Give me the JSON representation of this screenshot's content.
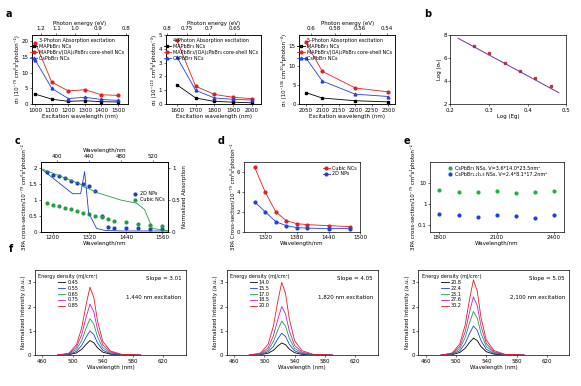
{
  "chart_data": [
    {
      "type": "line",
      "panel_label": "a",
      "title": "3-Photon Absorption excitation",
      "x_label": "Excitation wavelength (nm)",
      "y_label": "σ₃ (10⁻⁷⁹ cm⁶s²photon⁻²)",
      "x2_label": "Photon energy (eV)",
      "x": [
        1000,
        1100,
        1200,
        1300,
        1400,
        1500
      ],
      "xlim": [
        980,
        1560
      ],
      "xticks": [
        1000,
        1100,
        1200,
        1300,
        1400,
        1500
      ],
      "x2lim": [
        980,
        1560
      ],
      "x2ticks": [
        {
          "value": 1033,
          "label": "1.2"
        },
        {
          "value": 1127,
          "label": "1.1"
        },
        {
          "value": 1240,
          "label": "1.0"
        },
        {
          "value": 1378,
          "label": "0.9"
        },
        {
          "value": 1550,
          "label": "0.8"
        }
      ],
      "ylim": [
        0,
        22
      ],
      "yticks": [
        0,
        5,
        10,
        15,
        20
      ],
      "legend": "upper right",
      "series": [
        {
          "name": "MAPbBr₃ NCs",
          "color": "#000000",
          "marker": "square",
          "line_style": "solid",
          "values": [
            3.2,
            1.6,
            0.9,
            1.1,
            0.8,
            0.7
          ]
        },
        {
          "name": "MAPbBr₃/(OA)₂PbBr₄ core-shell NCs",
          "color": "#e02020",
          "marker": "circle",
          "line_style": "solid",
          "values": [
            19.5,
            7.0,
            4.2,
            4.6,
            3.0,
            2.8
          ]
        },
        {
          "name": "CsPbBr₃ NCs",
          "color": "#2040e0",
          "marker": "triangle",
          "line_style": "solid",
          "values": [
            14.0,
            5.0,
            1.8,
            2.2,
            1.5,
            1.2
          ]
        }
      ]
    },
    {
      "type": "line",
      "title": "4-Photon Absorption excitation",
      "x_label": "Excitation wavelength (nm)",
      "y_label": "σ₄ (10⁻¹¹⁰ cm⁸s³photon⁻³)",
      "x2_label": "Photon energy (eV)",
      "x": [
        1600,
        1700,
        1800,
        1900,
        2000
      ],
      "xlim": [
        1540,
        2050
      ],
      "xticks": [
        1600,
        1700,
        1800,
        1900,
        2000
      ],
      "x2lim": [
        1540,
        2050
      ],
      "x2ticks": [
        {
          "value": 1550,
          "label": "0.8"
        },
        {
          "value": 1653,
          "label": "0.75"
        },
        {
          "value": 1771,
          "label": "0.7"
        },
        {
          "value": 1908,
          "label": "0.65"
        }
      ],
      "ylim": [
        0,
        5
      ],
      "yticks": [
        0,
        1,
        2,
        3,
        4,
        5
      ],
      "legend": "upper right",
      "series": [
        {
          "name": "MAPbBr₃ NCs",
          "color": "#000000",
          "marker": "square",
          "line_style": "solid",
          "values": [
            1.4,
            0.45,
            0.2,
            0.15,
            0.1
          ]
        },
        {
          "name": "MAPbBr₃/(OA)₂PbBr₄ core-shell NCs",
          "color": "#e02020",
          "marker": "circle",
          "line_style": "solid",
          "values": [
            4.6,
            1.3,
            0.7,
            0.5,
            0.4
          ]
        },
        {
          "name": "CsPbBr₃ NCs",
          "color": "#2040e0",
          "marker": "triangle",
          "line_style": "solid",
          "values": [
            3.4,
            1.0,
            0.45,
            0.35,
            0.3
          ]
        }
      ]
    },
    {
      "type": "line",
      "title": "5-Photon Absorption excitation",
      "x_label": "Excitation wavelength (nm)",
      "y_label": "σ₅ (10⁻¹³⁶ cm¹⁰s⁴photon⁻⁴)",
      "x2_label": "Photon energy (eV)",
      "x": [
        2050,
        2100,
        2200,
        2300
      ],
      "xlim": [
        2030,
        2320
      ],
      "xticks": [
        2050,
        2100,
        2150,
        2200,
        2250,
        2300
      ],
      "x2lim": [
        2030,
        2320
      ],
      "x2ticks": [
        {
          "value": 2067,
          "label": "0.6"
        },
        {
          "value": 2138,
          "label": "0.58"
        },
        {
          "value": 2214,
          "label": "0.56"
        },
        {
          "value": 2296,
          "label": "0.54"
        }
      ],
      "ylim": [
        0,
        18
      ],
      "yticks": [
        0,
        5,
        10,
        15
      ],
      "legend": "upper right",
      "series": [
        {
          "name": "MAPbBr₃ NCs",
          "color": "#000000",
          "marker": "square",
          "line_style": "solid",
          "values": [
            3.0,
            1.6,
            0.9,
            0.6
          ]
        },
        {
          "name": "MAPbBr₃/(OA)₂PbBr₄ core-shell NCs",
          "color": "#e02020",
          "marker": "circle",
          "line_style": "solid",
          "values": [
            16.0,
            8.5,
            4.2,
            3.2
          ]
        },
        {
          "name": "CsPbBr₃ NCs",
          "color": "#2040e0",
          "marker": "triangle",
          "line_style": "solid",
          "values": [
            12.0,
            6.0,
            2.6,
            2.0
          ]
        }
      ]
    },
    {
      "type": "scatter",
      "panel_label": "b",
      "x_label": "Log (Eg)",
      "y_label": "Log (σₙ)",
      "x": [
        0.26,
        0.3,
        0.34,
        0.38,
        0.42,
        0.46
      ],
      "xlim": [
        0.2,
        0.5
      ],
      "xticks": [
        0.2,
        0.3,
        0.4,
        0.5
      ],
      "ylim": [
        2,
        8
      ],
      "yticks": [
        2,
        4,
        6,
        8
      ],
      "series": [
        {
          "color": "#c0392b",
          "marker": "square",
          "line_style": "none",
          "values": [
            7.0,
            6.4,
            5.6,
            4.9,
            4.3,
            3.6
          ]
        }
      ],
      "fit": {
        "x": [
          0.22,
          0.48
        ],
        "values": [
          7.7,
          3.0
        ],
        "color": "#7030a0",
        "line_style": "solid"
      }
    },
    {
      "type": "scatter",
      "panel_label": "c",
      "x_label": "Wavelength/nm",
      "y_label": "3PA cross-section/10⁻⁷⁹ cm⁶s²photon⁻²",
      "x2_label": "Wavelength/nm",
      "y2_label": "Normalized Absorption",
      "x": [
        1180,
        1200,
        1220,
        1240,
        1260,
        1280,
        1300,
        1320,
        1340,
        1360,
        1380,
        1400,
        1440,
        1480,
        1520,
        1560
      ],
      "xlim": [
        1160,
        1580
      ],
      "xticks": [
        1200,
        1320,
        1440,
        1560
      ],
      "x2lim": [
        380,
        540
      ],
      "x2ticks": [
        400,
        440,
        480,
        520
      ],
      "ylim": [
        0,
        2.2
      ],
      "yticks": [
        0,
        0.5,
        1,
        1.5,
        2
      ],
      "y2lim": [
        0,
        1.1
      ],
      "y2ticks": [
        0,
        0.5,
        1
      ],
      "legend": "center right",
      "series": [
        {
          "name": "2D NPs",
          "color": "#2040c0",
          "marker": "circle",
          "line_style": "none",
          "values": [
            1.9,
            1.8,
            1.75,
            1.7,
            1.6,
            1.55,
            1.5,
            1.45,
            1.3,
            0.5,
            0.15,
            0.12,
            0.1,
            0.1,
            0.08,
            0.08
          ]
        },
        {
          "name": "Cubic NCs",
          "color": "#20a040",
          "marker": "circle",
          "line_style": "none",
          "values": [
            0.9,
            0.85,
            0.8,
            0.75,
            0.7,
            0.65,
            0.6,
            0.55,
            0.5,
            0.45,
            0.4,
            0.35,
            0.3,
            0.25,
            0.2,
            0.18
          ]
        },
        {
          "axis": "y2",
          "x": [
            380,
            400,
            420,
            430,
            435,
            440,
            450,
            460,
            480,
            500,
            510,
            520,
            540
          ],
          "color": "#2040c0",
          "line_style": "solid",
          "values": [
            1.0,
            0.8,
            0.6,
            0.6,
            0.95,
            0.3,
            0.05,
            0.02,
            0.01,
            0.01,
            0.01,
            0.01,
            0.01
          ]
        },
        {
          "axis": "y2",
          "x": [
            380,
            400,
            420,
            430,
            435,
            440,
            450,
            460,
            480,
            500,
            510,
            520,
            540
          ],
          "color": "#20a040",
          "line_style": "solid",
          "values": [
            1.0,
            0.9,
            0.8,
            0.75,
            0.7,
            0.68,
            0.62,
            0.58,
            0.5,
            0.45,
            0.35,
            0.05,
            0.01
          ]
        }
      ]
    },
    {
      "type": "line",
      "panel_label": "d",
      "x_label": "Wavelength/nm",
      "y_label": "3PA Cross-section/10⁻⁷⁹ cm⁶s²photon⁻²",
      "x": [
        1300,
        1320,
        1340,
        1360,
        1380,
        1400,
        1440,
        1480
      ],
      "xlim": [
        1280,
        1500
      ],
      "xticks": [
        1320,
        1380,
        1440,
        1500
      ],
      "ylim": [
        0,
        7
      ],
      "yticks": [
        0,
        2,
        4,
        6
      ],
      "legend": "upper right",
      "series": [
        {
          "name": "Cubic NCs",
          "color": "#e02020",
          "marker": "circle",
          "line_style": "solid",
          "values": [
            6.5,
            4.0,
            2.0,
            1.1,
            0.8,
            0.7,
            0.6,
            0.5
          ]
        },
        {
          "name": "2D NPs",
          "color": "#2040e0",
          "marker": "circle",
          "line_style": "solid",
          "values": [
            3.0,
            2.0,
            1.0,
            0.6,
            0.4,
            0.35,
            0.3,
            0.3
          ]
        }
      ]
    },
    {
      "type": "scatter",
      "panel_label": "e",
      "log": "y",
      "x_label": "Wavelength/nm",
      "y_label": "3PA cross-section/10⁻⁷⁹ cm⁶s²photon⁻²",
      "x": [
        1800,
        1900,
        2000,
        2100,
        2200,
        2300,
        2400
      ],
      "xlim": [
        1750,
        2450
      ],
      "xticks": [
        1800,
        2100,
        2400
      ],
      "ylim": [
        0.05,
        100
      ],
      "yticks": [
        0.1,
        1,
        10
      ],
      "legend": "upper center",
      "series": [
        {
          "name": "CsPbBr₃ NSs, V=3.6*14.0*23.5nm³",
          "color": "#20b040",
          "marker": "circle",
          "line_style": "none",
          "values": [
            4.5,
            4.0,
            3.8,
            4.2,
            3.5,
            3.9,
            4.1
          ]
        },
        {
          "name": "CsPbBr₁.₂I₁.₈ NSs, V=2.4*8.1*17.2nm³",
          "color": "#2040e0",
          "marker": "circle",
          "line_style": "none",
          "values": [
            0.35,
            0.3,
            0.25,
            0.3,
            0.28,
            0.22,
            0.3
          ]
        }
      ]
    },
    {
      "type": "line",
      "panel_label": "f",
      "x_label": "Wavelength (nm)",
      "y_label": "Normalized Intensity (a.u.)",
      "legend_title": "Energy density (mJ/cm²)",
      "legend": "upper left",
      "annotations": [
        "Slope = 3.01",
        "1,440 nm excitation"
      ],
      "x": [
        480,
        495,
        505,
        512,
        518,
        523,
        528,
        533,
        540,
        550,
        565,
        590
      ],
      "xlim": [
        450,
        650
      ],
      "xticks": [
        460,
        500,
        540,
        580,
        620
      ],
      "ylim": [
        0,
        3.5
      ],
      "yticks": [
        0,
        1,
        2,
        3
      ],
      "series": [
        {
          "name": "0.45",
          "color": "#000000",
          "line_style": "solid",
          "values": [
            0,
            0.02,
            0.09,
            0.24,
            0.45,
            0.6,
            0.51,
            0.3,
            0.12,
            0.04,
            0.01,
            0
          ]
        },
        {
          "name": "0.55",
          "color": "#2040e0",
          "line_style": "solid",
          "values": [
            0,
            0.03,
            0.15,
            0.4,
            0.75,
            1.0,
            0.85,
            0.5,
            0.2,
            0.06,
            0.01,
            0
          ]
        },
        {
          "name": "0.65",
          "color": "#20a040",
          "line_style": "solid",
          "values": [
            0,
            0.05,
            0.23,
            0.6,
            1.13,
            1.5,
            1.28,
            0.75,
            0.3,
            0.09,
            0.02,
            0
          ]
        },
        {
          "name": "0.75",
          "color": "#c020c0",
          "line_style": "solid",
          "values": [
            0,
            0.06,
            0.32,
            0.84,
            1.58,
            2.1,
            1.79,
            1.05,
            0.42,
            0.13,
            0.02,
            0
          ]
        },
        {
          "name": "0.85",
          "color": "#e02020",
          "line_style": "solid",
          "values": [
            0,
            0.08,
            0.42,
            1.12,
            2.1,
            2.8,
            2.38,
            1.4,
            0.56,
            0.17,
            0.03,
            0
          ]
        }
      ]
    },
    {
      "type": "line",
      "x_label": "Wavelength (nm)",
      "y_label": "Normalized Intensity (a.u.)",
      "legend_title": "Energy density (mJ/cm²)",
      "legend": "upper left",
      "annotations": [
        "Slope = 4.05",
        "1,820 nm excitation"
      ],
      "x": [
        480,
        495,
        505,
        512,
        518,
        523,
        528,
        533,
        540,
        550,
        565,
        590
      ],
      "xlim": [
        450,
        650
      ],
      "xticks": [
        460,
        500,
        540,
        580,
        620
      ],
      "ylim": [
        0,
        3.5
      ],
      "yticks": [
        0,
        1,
        2,
        3
      ],
      "series": [
        {
          "name": "14.0",
          "color": "#000000",
          "line_style": "solid",
          "values": [
            0,
            0.02,
            0.08,
            0.2,
            0.38,
            0.5,
            0.43,
            0.25,
            0.1,
            0.03,
            0.01,
            0
          ]
        },
        {
          "name": "15.5",
          "color": "#2040e0",
          "line_style": "solid",
          "values": [
            0,
            0.03,
            0.14,
            0.36,
            0.68,
            0.9,
            0.77,
            0.45,
            0.18,
            0.05,
            0.01,
            0
          ]
        },
        {
          "name": "17.0",
          "color": "#20a040",
          "line_style": "solid",
          "values": [
            0,
            0.04,
            0.21,
            0.56,
            1.05,
            1.4,
            1.19,
            0.7,
            0.28,
            0.08,
            0.01,
            0
          ]
        },
        {
          "name": "18.5",
          "color": "#c020c0",
          "line_style": "solid",
          "values": [
            0,
            0.06,
            0.3,
            0.8,
            1.5,
            2.0,
            1.7,
            1.0,
            0.4,
            0.12,
            0.02,
            0
          ]
        },
        {
          "name": "20.0",
          "color": "#e02020",
          "line_style": "solid",
          "values": [
            0,
            0.09,
            0.45,
            1.2,
            2.25,
            3.0,
            2.55,
            1.5,
            0.6,
            0.18,
            0.03,
            0
          ]
        }
      ]
    },
    {
      "type": "line",
      "x_label": "Wavelength (nm)",
      "y_label": "Normalized Intensity (a.u.)",
      "legend_title": "Energy density (mJ/cm²)",
      "legend": "upper left",
      "annotations": [
        "Slope = 5.05",
        "2,100 nm excitation"
      ],
      "x": [
        480,
        495,
        505,
        512,
        518,
        523,
        528,
        533,
        540,
        550,
        565,
        590
      ],
      "xlim": [
        450,
        650
      ],
      "xticks": [
        460,
        500,
        540,
        580,
        620
      ],
      "ylim": [
        0,
        3.5
      ],
      "yticks": [
        0,
        1,
        2,
        3
      ],
      "series": [
        {
          "name": "20.8",
          "color": "#000000",
          "line_style": "solid",
          "values": [
            0,
            0.02,
            0.11,
            0.28,
            0.53,
            0.7,
            0.6,
            0.35,
            0.14,
            0.04,
            0.01,
            0
          ]
        },
        {
          "name": "22.4",
          "color": "#2040e0",
          "line_style": "solid",
          "values": [
            0,
            0.04,
            0.18,
            0.48,
            0.9,
            1.2,
            1.02,
            0.6,
            0.24,
            0.07,
            0.01,
            0
          ]
        },
        {
          "name": "25.1",
          "color": "#20a040",
          "line_style": "solid",
          "values": [
            0,
            0.05,
            0.27,
            0.72,
            1.35,
            1.8,
            1.53,
            0.9,
            0.36,
            0.11,
            0.02,
            0
          ]
        },
        {
          "name": "27.6",
          "color": "#c020c0",
          "line_style": "solid",
          "values": [
            0,
            0.07,
            0.36,
            0.96,
            1.8,
            2.4,
            2.04,
            1.2,
            0.48,
            0.14,
            0.02,
            0
          ]
        },
        {
          "name": "30.2",
          "color": "#e02020",
          "line_style": "solid",
          "values": [
            0,
            0.09,
            0.47,
            1.24,
            2.33,
            3.1,
            2.64,
            1.55,
            0.62,
            0.19,
            0.03,
            0
          ]
        }
      ]
    }
  ]
}
